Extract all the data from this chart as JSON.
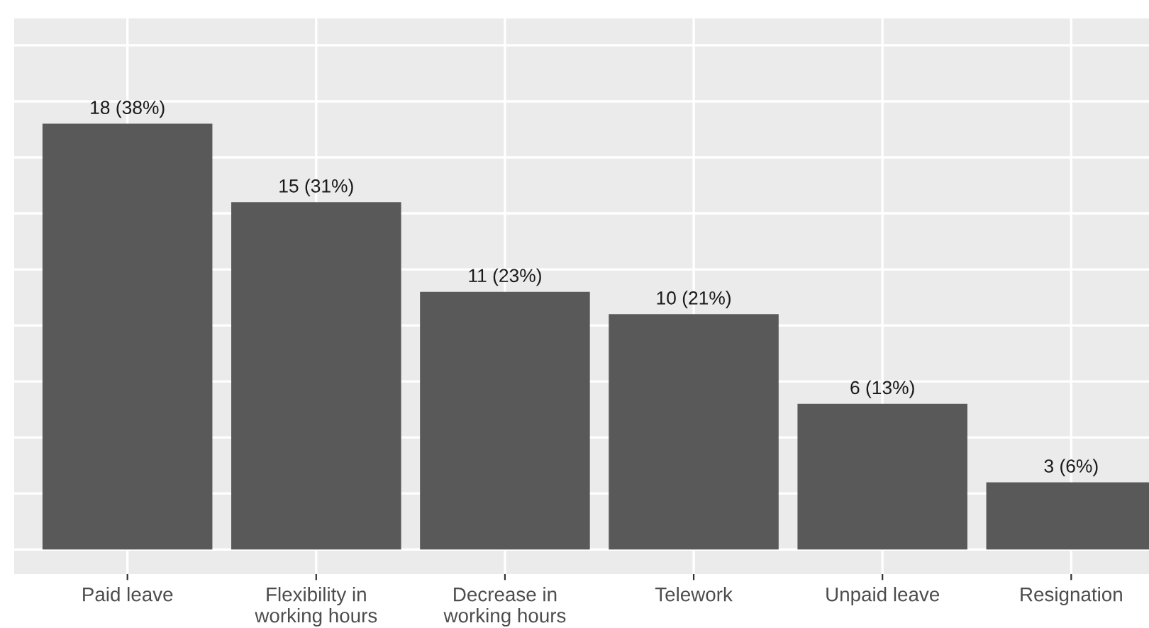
{
  "chart_data": {
    "type": "bar",
    "categories": [
      "Paid leave",
      "Flexibility in\nworking hours",
      "Decrease in\nworking hours",
      "Telework",
      "Unpaid leave",
      "Resignation"
    ],
    "values": [
      38,
      31,
      23,
      21,
      13,
      6
    ],
    "value_labels": [
      "18 (38%)",
      "15 (31%)",
      "11 (23%)",
      "10 (21%)",
      "6 (13%)",
      "3 (6%)"
    ],
    "color": "#595959",
    "ylim": [
      -2.2,
      47.4
    ],
    "yticks": [
      {
        "value": 0,
        "label": null
      },
      {
        "value": 5,
        "label": null
      },
      {
        "value": 10,
        "label": null
      },
      {
        "value": 15,
        "label": null
      },
      {
        "value": 20,
        "label": null
      },
      {
        "value": 25,
        "label": null
      },
      {
        "value": 30,
        "label": null
      },
      {
        "value": 35,
        "label": null
      },
      {
        "value": 40,
        "label": null
      },
      {
        "value": 45,
        "label": null
      }
    ],
    "grid": true,
    "tick_labels": "x"
  }
}
